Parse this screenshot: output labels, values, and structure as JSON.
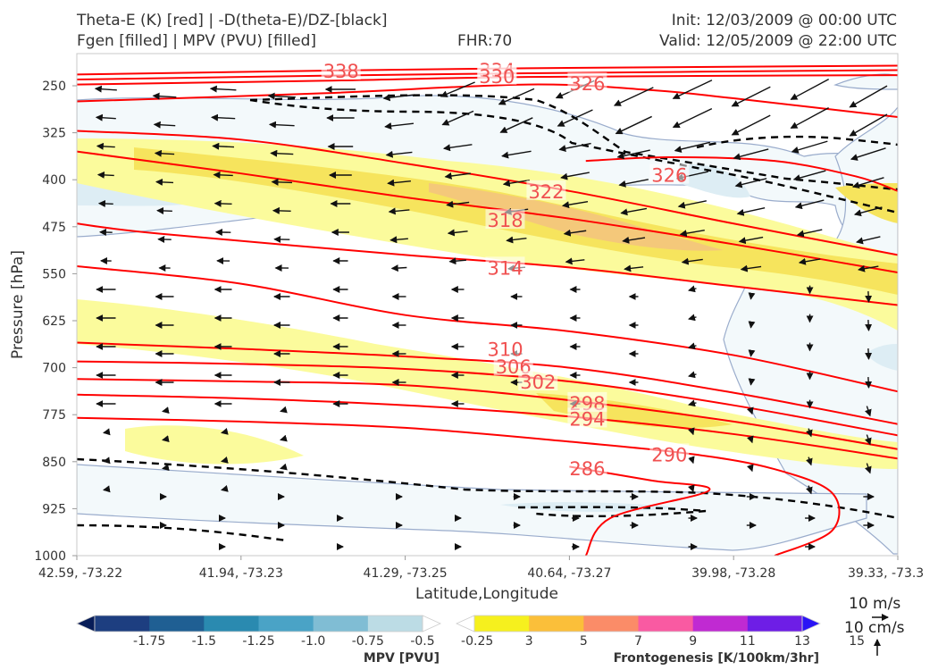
{
  "header": {
    "line1_left": "Theta-E (K) [red] | -D(theta-E)/DZ-[black]",
    "line2_left": "Fgen [filled] | MPV (PVU) [filled]",
    "fhr": "FHR:70",
    "init": "Init: 12/03/2009 @ 00:00 UTC",
    "valid": "Valid: 12/05/2009 @ 22:00 UTC"
  },
  "colors": {
    "theta_e": "#ff0000",
    "dthetae_dz": "#000000",
    "mpv_light": "#f3f9fb",
    "mpv_mid": "#ddedf4",
    "fgen_1": "#fbfb9c",
    "fgen_2": "#f6e45d",
    "fgen_3": "#f4c87a",
    "mpv_contour": "#9aaccc"
  },
  "chart_data": {
    "type": "cross-section",
    "xlabel": "Latitude,Longitude",
    "ylabel": "Pressure [hPa]",
    "x_ticks": [
      "42.59, -73.22",
      "41.94, -73.23",
      "41.29, -73.25",
      "40.64, -73.27",
      "39.98, -73.28",
      "39.33, -73.3"
    ],
    "y_ticks": [
      250,
      325,
      400,
      475,
      550,
      625,
      700,
      775,
      850,
      925,
      1000
    ],
    "ylim": [
      1000,
      200
    ],
    "theta_e_contours": [
      {
        "value": 338,
        "label": "338",
        "points": [
          [
            0,
            232
          ],
          [
            0.3,
            226
          ],
          [
            0.55,
            222
          ],
          [
            1,
            218
          ]
        ],
        "label_at": [
          0.3,
          226
        ]
      },
      {
        "value": 334,
        "label": "334",
        "points": [
          [
            0,
            240
          ],
          [
            0.3,
            234
          ],
          [
            0.55,
            230
          ],
          [
            1,
            225
          ]
        ],
        "label_at": [
          0.49,
          224
        ]
      },
      {
        "value": 330,
        "label": "330",
        "points": [
          [
            0,
            248
          ],
          [
            0.3,
            242
          ],
          [
            0.55,
            236
          ],
          [
            1,
            233
          ]
        ],
        "label_at": [
          0.49,
          234
        ]
      },
      {
        "value": 326,
        "label": "326",
        "points": [
          [
            0,
            275
          ],
          [
            0.3,
            262
          ],
          [
            0.55,
            248
          ],
          [
            0.7,
            257
          ],
          [
            0.8,
            270
          ],
          [
            1,
            300
          ]
        ],
        "label_at": [
          0.6,
          246
        ]
      },
      {
        "value": 326,
        "label": "326",
        "points": [
          [
            0.62,
            370
          ],
          [
            0.72,
            364
          ],
          [
            0.85,
            370
          ],
          [
            0.95,
            395
          ],
          [
            1,
            418
          ]
        ],
        "label_at": [
          0.7,
          392
        ]
      },
      {
        "value": 322,
        "label": "322",
        "points": [
          [
            0,
            322
          ],
          [
            0.2,
            336
          ],
          [
            0.4,
            374
          ],
          [
            0.6,
            418
          ],
          [
            0.8,
            470
          ],
          [
            1,
            520
          ]
        ],
        "label_at": [
          0.55,
          418
        ]
      },
      {
        "value": 318,
        "label": "318",
        "points": [
          [
            0,
            355
          ],
          [
            0.2,
            390
          ],
          [
            0.4,
            428
          ],
          [
            0.6,
            462
          ],
          [
            0.8,
            503
          ],
          [
            1,
            548
          ]
        ],
        "label_at": [
          0.5,
          464
        ]
      },
      {
        "value": 314,
        "label": "314",
        "points": [
          [
            0,
            470
          ],
          [
            0.1,
            486
          ],
          [
            0.4,
            520
          ],
          [
            0.6,
            540
          ],
          [
            0.8,
            570
          ],
          [
            1,
            600
          ]
        ],
        "label_at": [
          0.5,
          540
        ]
      },
      {
        "value": 310,
        "label": "310",
        "points": [
          [
            0,
            538
          ],
          [
            0.2,
            566
          ],
          [
            0.4,
            616
          ],
          [
            0.6,
            642
          ],
          [
            0.8,
            680
          ],
          [
            1,
            738
          ]
        ],
        "label_at": [
          0.5,
          670
        ]
      },
      {
        "value": 306,
        "label": "306",
        "points": [
          [
            0,
            660
          ],
          [
            0.2,
            670
          ],
          [
            0.4,
            682
          ],
          [
            0.6,
            700
          ],
          [
            0.8,
            740
          ],
          [
            1,
            790
          ]
        ],
        "label_at": [
          0.51,
          698
        ]
      },
      {
        "value": 302,
        "label": "302",
        "points": [
          [
            0,
            690
          ],
          [
            0.2,
            694
          ],
          [
            0.4,
            702
          ],
          [
            0.6,
            722
          ],
          [
            0.8,
            760
          ],
          [
            1,
            808
          ]
        ],
        "label_at": [
          0.54,
          722
        ]
      },
      {
        "value": 298,
        "label": "298",
        "points": [
          [
            0,
            718
          ],
          [
            0.2,
            722
          ],
          [
            0.4,
            728
          ],
          [
            0.6,
            752
          ],
          [
            0.8,
            786
          ],
          [
            1,
            830
          ]
        ],
        "label_at": [
          0.6,
          756
        ]
      },
      {
        "value": 294,
        "label": "294",
        "points": [
          [
            0,
            743
          ],
          [
            0.2,
            749
          ],
          [
            0.4,
            760
          ],
          [
            0.6,
            778
          ],
          [
            0.8,
            806
          ],
          [
            1,
            845
          ]
        ],
        "label_at": [
          0.6,
          781
        ]
      },
      {
        "value": 290,
        "label": "290",
        "points": [
          [
            0,
            780
          ],
          [
            0.2,
            786
          ],
          [
            0.4,
            796
          ],
          [
            0.6,
            818
          ],
          [
            0.75,
            838
          ],
          [
            0.85,
            862
          ],
          [
            0.92,
            900
          ],
          [
            0.92,
            960
          ],
          [
            0.85,
            1000
          ]
        ],
        "label_at": [
          0.7,
          838
        ]
      },
      {
        "value": 286,
        "label": "286",
        "points": [
          [
            0.6,
            858
          ],
          [
            0.7,
            880
          ],
          [
            0.77,
            896
          ],
          [
            0.65,
            940
          ],
          [
            0.62,
            1000
          ]
        ],
        "label_at": [
          0.6,
          860
        ]
      }
    ],
    "cbar_mpv": {
      "label": "MPV [PVU]",
      "ticks": [
        "-1.75",
        "-1.5",
        "-1.25",
        "-1.0",
        "-0.75",
        "-0.5",
        "-0.25"
      ],
      "colors": [
        "#081d58",
        "#1d3e80",
        "#1f5f93",
        "#2a8ab0",
        "#4aa3c6",
        "#80bdd4",
        "#bcdce5",
        "#ffffff"
      ]
    },
    "cbar_fgen": {
      "label": "Frontogenesis [K/100km/3hr]",
      "ticks": [
        "3",
        "5",
        "7",
        "9",
        "11",
        "13",
        "15"
      ],
      "colors": [
        "#ffffff",
        "#f6f01e",
        "#fbbf3a",
        "#fb8c68",
        "#f95aa2",
        "#c02ad2",
        "#6e1ee6",
        "#2a14f5"
      ]
    },
    "reference_vectors": [
      "10 m/s",
      "10 cm/s"
    ]
  }
}
